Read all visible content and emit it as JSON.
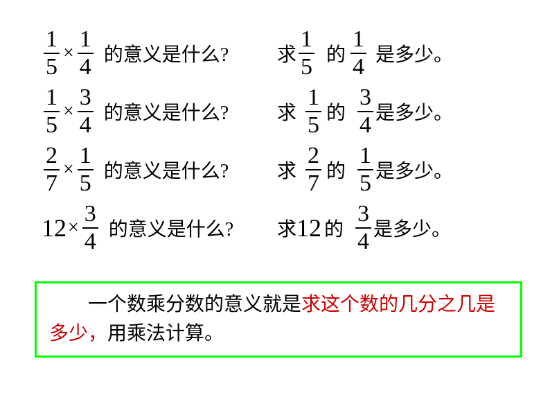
{
  "rows": [
    {
      "left": {
        "type": "fxf",
        "n1": "1",
        "d1": "5",
        "n2": "1",
        "d2": "4"
      },
      "qtext": "的意义是什么?",
      "right": {
        "prefix": "求",
        "type": "fxf",
        "n1": "1",
        "d1": "5",
        "n2": "1",
        "d2": "4",
        "mid": "的",
        "suffix": "是多少。"
      }
    },
    {
      "left": {
        "type": "fxf",
        "n1": "1",
        "d1": "5",
        "n2": "3",
        "d2": "4"
      },
      "qtext": "的意义是什么?",
      "right": {
        "prefix": "求",
        "type": "fxf",
        "n1": "1",
        "d1": "5",
        "n2": "3",
        "d2": "4",
        "mid": "的",
        "suffix": "是多少。"
      }
    },
    {
      "left": {
        "type": "fxf",
        "n1": "2",
        "d1": "7",
        "n2": "1",
        "d2": "5"
      },
      "qtext": "的意义是什么?",
      "right": {
        "prefix": "求",
        "type": "fxf",
        "n1": "2",
        "d1": "7",
        "n2": "1",
        "d2": "5",
        "mid": "的",
        "suffix": "是多少。"
      }
    },
    {
      "left": {
        "type": "wxf",
        "w": "12",
        "n2": "3",
        "d2": "4"
      },
      "qtext": "的意义是什么?",
      "right": {
        "prefix": "求",
        "type": "wxf",
        "w": "12",
        "n2": "3",
        "d2": "4",
        "mid": "的",
        "suffix": "是多少。"
      }
    }
  ],
  "summary": {
    "black1": "一个数乘分数的意义就是",
    "red": "求这个数的几分之几是多少，",
    "black2": "用乘法计算。"
  },
  "colors": {
    "border": "#00ff00",
    "red": "#cc0000",
    "black": "#000000",
    "background": "#ffffff"
  }
}
